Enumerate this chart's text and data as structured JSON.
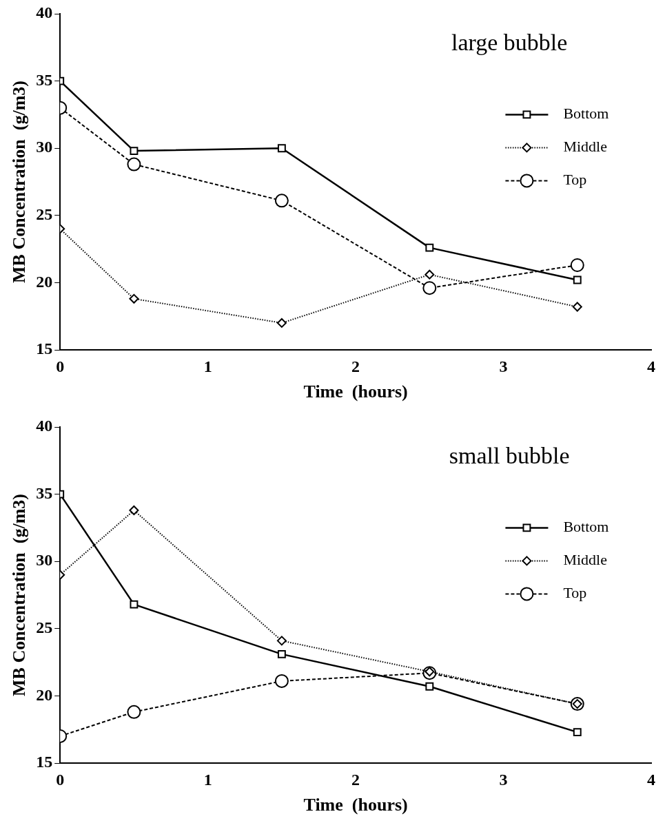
{
  "chart_data": [
    {
      "type": "line",
      "title": "large bubble",
      "xlabel": "Time  (hours)",
      "ylabel": "MB Concentration  (g/m3)",
      "x": [
        0,
        0.5,
        1.5,
        2.5,
        3.5
      ],
      "xlim": [
        0,
        4
      ],
      "xticks": [
        0,
        1,
        2,
        3,
        4
      ],
      "ylim": [
        15,
        40
      ],
      "yticks": [
        15,
        20,
        25,
        30,
        35,
        40
      ],
      "legend": "right",
      "grid": false,
      "series": [
        {
          "name": "Bottom",
          "color": "#000000",
          "values": [
            35,
            29.8,
            30,
            22.6,
            20.2
          ],
          "marker": "square",
          "line_style": "solid"
        },
        {
          "name": "Middle",
          "color": "#000000",
          "values": [
            24,
            18.8,
            17,
            20.6,
            18.2
          ],
          "marker": "diamond",
          "line_style": "dotted"
        },
        {
          "name": "Top",
          "color": "#000000",
          "values": [
            33,
            28.8,
            26.1,
            19.6,
            21.3
          ],
          "marker": "circle",
          "line_style": "dashed"
        }
      ]
    },
    {
      "type": "line",
      "title": "small bubble",
      "xlabel": "Time  (hours)",
      "ylabel": "MB Concentration  (g/m3)",
      "x": [
        0,
        0.5,
        1.5,
        2.5,
        3.5
      ],
      "xlim": [
        0,
        4
      ],
      "xticks": [
        0,
        1,
        2,
        3,
        4
      ],
      "ylim": [
        15,
        40
      ],
      "yticks": [
        15,
        20,
        25,
        30,
        35,
        40
      ],
      "legend": "right",
      "grid": false,
      "series": [
        {
          "name": "Bottom",
          "color": "#000000",
          "values": [
            35,
            26.8,
            23.1,
            20.7,
            17.3
          ],
          "marker": "square",
          "line_style": "solid"
        },
        {
          "name": "Middle",
          "color": "#000000",
          "values": [
            29,
            33.8,
            24.1,
            21.8,
            19.4
          ],
          "marker": "diamond",
          "line_style": "dotted"
        },
        {
          "name": "Top",
          "color": "#000000",
          "values": [
            17,
            18.8,
            21.1,
            21.7,
            19.4
          ],
          "marker": "circle",
          "line_style": "dashed"
        }
      ]
    }
  ]
}
